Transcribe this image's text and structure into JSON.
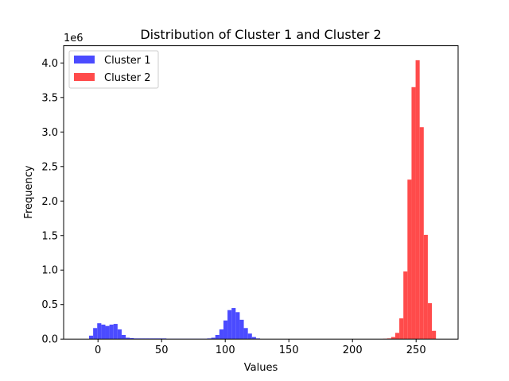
{
  "chart_data": {
    "type": "histogram",
    "title": "Distribution of Cluster 1 and Cluster 2",
    "xlabel": "Values",
    "ylabel": "Frequency",
    "y_scale_label": "1e6",
    "xlim": [
      -27,
      283
    ],
    "ylim": [
      0,
      4.25
    ],
    "x_ticks": [
      0,
      50,
      100,
      150,
      200,
      250
    ],
    "x_tick_labels": [
      "0",
      "50",
      "100",
      "150",
      "200",
      "250"
    ],
    "y_ticks": [
      0,
      0.5,
      1.0,
      1.5,
      2.0,
      2.5,
      3.0,
      3.5,
      4.0
    ],
    "y_tick_labels": [
      "0.0",
      "0.5",
      "1.0",
      "1.5",
      "2.0",
      "2.5",
      "3.0",
      "3.5",
      "4.0"
    ],
    "grid": false,
    "legend_position": "top-left",
    "bin_width": 3.2,
    "series": [
      {
        "name": "Cluster 1",
        "color": "#4b4bff",
        "bin_start": -7,
        "values": [
          0.05,
          0.16,
          0.23,
          0.21,
          0.19,
          0.21,
          0.22,
          0.14,
          0.06,
          0.02,
          0.015,
          0.01,
          0.01,
          0.01,
          0.01,
          0.01,
          0.01,
          0.01,
          0.01,
          0.005,
          0.005,
          0.005,
          0.005,
          0.005,
          0.005,
          0.005,
          0.005,
          0.005,
          0.005,
          0.01,
          0.02,
          0.06,
          0.14,
          0.27,
          0.42,
          0.45,
          0.39,
          0.28,
          0.16,
          0.08,
          0.03,
          0.01
        ]
      },
      {
        "name": "Cluster 2",
        "color": "#ff4b4b",
        "bin_start": 224,
        "values": [
          0.005,
          0.01,
          0.03,
          0.09,
          0.3,
          0.98,
          2.31,
          3.65,
          4.04,
          3.07,
          1.51,
          0.52,
          0.12
        ]
      }
    ]
  }
}
